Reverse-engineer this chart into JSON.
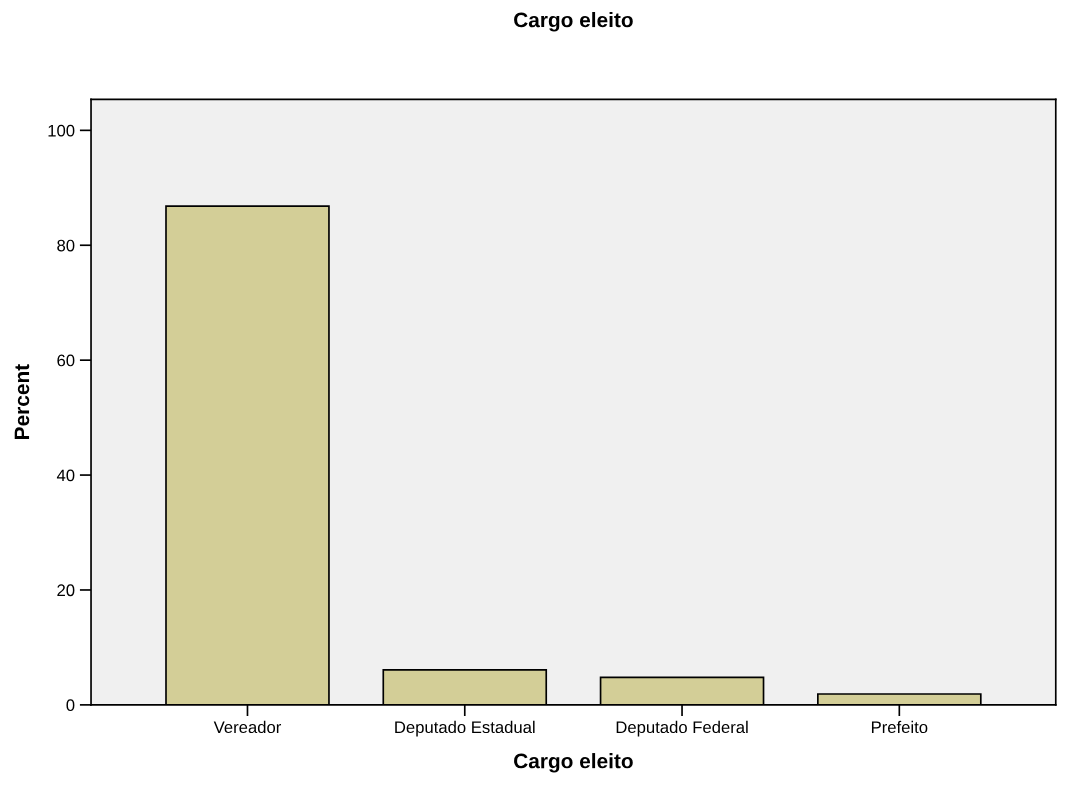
{
  "chart_data": {
    "type": "bar",
    "title": "Cargo eleito",
    "xlabel": "Cargo eleito",
    "ylabel": "Percent",
    "categories": [
      "Vereador",
      "Deputado Estadual",
      "Deputado Federal",
      "Prefeito"
    ],
    "values": [
      86.8,
      6.1,
      4.8,
      1.9
    ],
    "color": "#d3ce97",
    "ylim": [
      0,
      105.4
    ],
    "yticks": [
      0,
      20,
      40,
      60,
      80,
      100
    ],
    "grid": false,
    "legend": false
  }
}
